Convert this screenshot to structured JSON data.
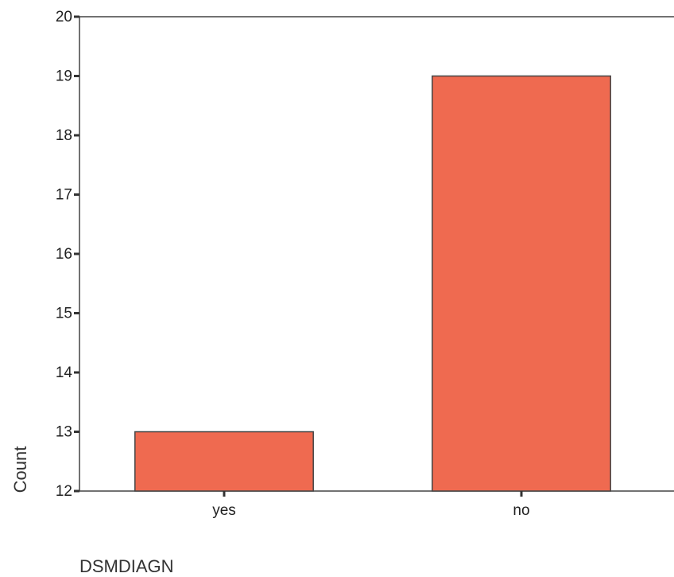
{
  "chart_data": {
    "type": "bar",
    "categories": [
      "yes",
      "no"
    ],
    "values": [
      13,
      19
    ],
    "xlabel": "DSMDIAGN",
    "ylabel": "Count",
    "ylim": [
      12,
      20
    ],
    "yticks": [
      12,
      13,
      14,
      15,
      16,
      17,
      18,
      19,
      20
    ],
    "grid": false,
    "bar_color": "#EF6A50",
    "bar_edge_color": "#444444"
  }
}
